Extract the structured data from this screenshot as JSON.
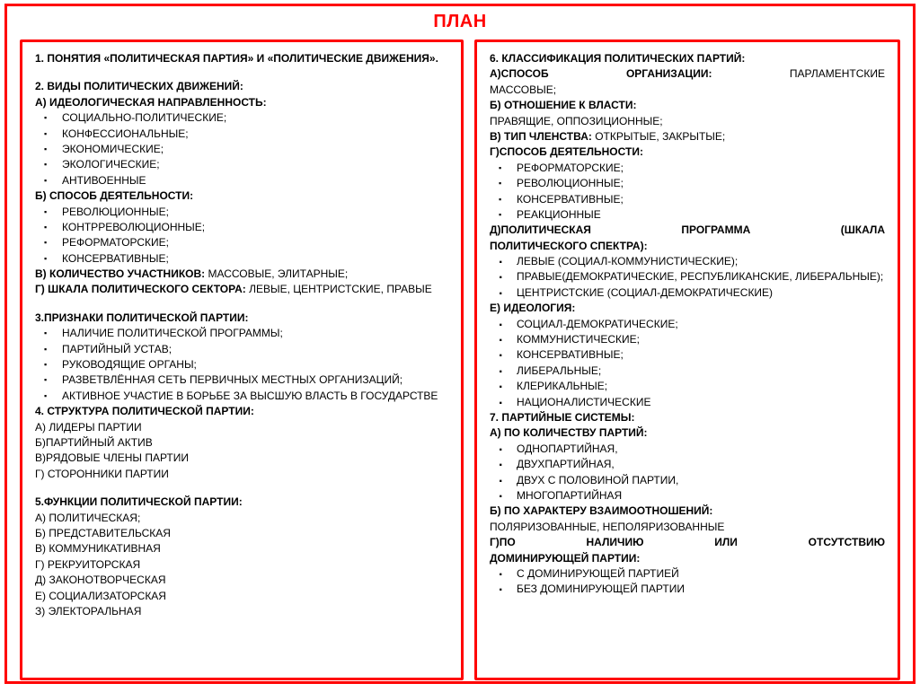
{
  "title": "ПЛАН",
  "colors": {
    "border": "#ff0000",
    "title": "#ff0000",
    "text": "#000000",
    "bg": "#ffffff"
  },
  "left": {
    "h1": "1. ПОНЯТИЯ «ПОЛИТИЧЕСКАЯ ПАРТИЯ» И «ПОЛИТИЧЕСКИЕ ДВИЖЕНИЯ».",
    "h2": "2. ВИДЫ ПОЛИТИЧЕСКИХ ДВИЖЕНИЙ:",
    "h2a": "А) ИДЕОЛОГИЧЕСКАЯ НАПРАВЛЕННОСТЬ:",
    "h2a_items": [
      "СОЦИАЛЬНО-ПОЛИТИЧЕСКИЕ;",
      "КОНФЕССИОНАЛЬНЫЕ;",
      "ЭКОНОМИЧЕСКИЕ;",
      "ЭКОЛОГИЧЕСКИЕ;",
      "АНТИВОЕННЫЕ"
    ],
    "h2b": "Б) СПОСОБ ДЕЯТЕЛЬНОСТИ:",
    "h2b_items": [
      "РЕВОЛЮЦИОННЫЕ;",
      "КОНТРРЕВОЛЮЦИОННЫЕ;",
      "РЕФОРМАТОРСКИЕ;",
      "КОНСЕРВАТИВНЫЕ;"
    ],
    "h2c_b": "В) КОЛИЧЕСТВО УЧАСТНИКОВ:",
    "h2c_t": " МАССОВЫЕ, ЭЛИТАРНЫЕ;",
    "h2d_b": "Г) ШКАЛА ПОЛИТИЧЕСКОГО СЕКТОРА:",
    "h2d_t": " ЛЕВЫЕ,  ЦЕНТРИСТСКИЕ, ПРАВЫЕ",
    "h3": "3.ПРИЗНАКИ ПОЛИТИЧЕСКОЙ ПАРТИИ:",
    "h3_items": [
      "НАЛИЧИЕ ПОЛИТИЧЕСКОЙ ПРОГРАММЫ;",
      "ПАРТИЙНЫЙ УСТАВ;",
      "РУКОВОДЯЩИЕ ОРГАНЫ;",
      "РАЗВЕТВЛЁННАЯ СЕТЬ ПЕРВИЧНЫХ МЕСТНЫХ ОРГАНИЗАЦИЙ;",
      "АКТИВНОЕ УЧАСТИЕ В БОРЬБЕ ЗА ВЫСШУЮ ВЛАСТЬ В ГОСУДАРСТВЕ"
    ],
    "h4": "4.  СТРУКТУРА ПОЛИТИЧЕСКОЙ ПАРТИИ:",
    "h4_items": [
      "А) ЛИДЕРЫ ПАРТИИ",
      "Б)ПАРТИЙНЫЙ АКТИВ",
      "В)РЯДОВЫЕ ЧЛЕНЫ ПАРТИИ",
      "Г) СТОРОННИКИ ПАРТИИ"
    ],
    "h5": "5.ФУНКЦИИ ПОЛИТИЧЕСКОЙ ПАРТИИ:",
    "h5_items": [
      "А) ПОЛИТИЧЕСКАЯ;",
      "Б) ПРЕДСТАВИТЕЛЬСКАЯ",
      "В) КОММУНИКАТИВНАЯ",
      "Г) РЕКРУИТОРСКАЯ",
      "Д) ЗАКОНОТВОРЧЕСКАЯ",
      "Е) СОЦИАЛИЗАТОРСКАЯ",
      "З) ЭЛЕКТОРАЛЬНАЯ"
    ]
  },
  "right": {
    "h6": "6. КЛАССИФИКАЦИЯ ПОЛИТИЧЕСКИХ ПАРТИЙ:",
    "h6a_b1": "А)СПОСОБ",
    "h6a_b2": "ОРГАНИЗАЦИИ:",
    "h6a_t": "ПАРЛАМЕНТСКИЕ",
    "h6a_tail": "МАССОВЫЕ;",
    "h6b": "Б) ОТНОШЕНИЕ К ВЛАСТИ:",
    "h6b_t": "ПРАВЯЩИЕ, ОППОЗИЦИОННЫЕ;",
    "h6c_b": "В) ТИП ЧЛЕНСТВА:",
    "h6c_t": " ОТКРЫТЫЕ, ЗАКРЫТЫЕ;",
    "h6g": "Г)СПОСОБ ДЕЯТЕЛЬНОСТИ:",
    "h6g_items": [
      "РЕФОРМАТОРСКИЕ;",
      "РЕВОЛЮЦИОННЫЕ;",
      "КОНСЕРВАТИВНЫЕ;",
      "РЕАКЦИОННЫЕ"
    ],
    "h6d_b1": "Д)ПОЛИТИЧЕСКАЯ",
    "h6d_b2": "ПРОГРАММА",
    "h6d_b3": "(ШКАЛА",
    "h6d_b4": "ПОЛИТИЧЕСКОГО СПЕКТРА):",
    "h6d_items": [
      "ЛЕВЫЕ (СОЦИАЛ-КОММУНИСТИЧЕСКИЕ);",
      "ПРАВЫЕ(ДЕМОКРАТИЧЕСКИЕ, РЕСПУБЛИКАНСКИЕ, ЛИБЕРАЛЬНЫЕ);",
      "ЦЕНТРИСТСКИЕ (СОЦИАЛ-ДЕМОКРАТИЧЕСКИЕ)"
    ],
    "h6e": "Е) ИДЕОЛОГИЯ:",
    "h6e_items": [
      "СОЦИАЛ-ДЕМОКРАТИЧЕСКИЕ;",
      "КОММУНИСТИЧЕСКИЕ;",
      "КОНСЕРВАТИВНЫЕ;",
      "ЛИБЕРАЛЬНЫЕ;",
      "КЛЕРИКАЛЬНЫЕ;",
      "НАЦИОНАЛИСТИЧЕСКИЕ"
    ],
    "h7": "7. ПАРТИЙНЫЕ СИСТЕМЫ:",
    "h7a": "А) ПО КОЛИЧЕСТВУ ПАРТИЙ:",
    "h7a_items": [
      "ОДНОПАРТИЙНАЯ,",
      "ДВУХПАРТИЙНАЯ,",
      "ДВУХ С ПОЛОВИНОЙ ПАРТИИ,",
      "МНОГОПАРТИЙНАЯ"
    ],
    "h7b": "Б) ПО ХАРАКТЕРУ ВЗАИМООТНОШЕНИЙ:",
    "h7b_t": "ПОЛЯРИЗОВАННЫЕ, НЕПОЛЯРИЗОВАННЫЕ",
    "h7g_b1": "Г)ПО",
    "h7g_b2": "НАЛИЧИЮ",
    "h7g_b3": "ИЛИ",
    "h7g_b4": "ОТСУТСТВИЮ",
    "h7g_b5": "ДОМИНИРУЮЩЕЙ ПАРТИИ:",
    "h7g_items": [
      "С ДОМИНИРУЮЩЕЙ ПАРТИЕЙ",
      "БЕЗ ДОМИНИРУЮЩЕЙ ПАРТИИ"
    ]
  }
}
